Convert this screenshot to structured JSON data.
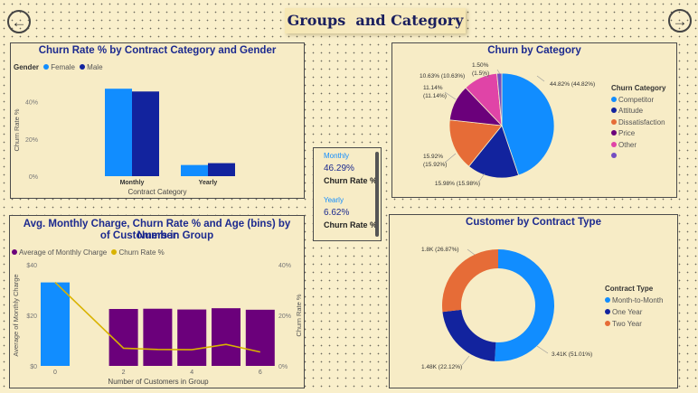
{
  "page": {
    "title": "Groups  and Category",
    "back_icon": "arrow-left-icon",
    "forward_icon": "arrow-right-icon"
  },
  "colors": {
    "blue": "#118dff",
    "navy": "#12239e",
    "orange": "#e66c37",
    "purple": "#6b007b",
    "pink": "#e044a7",
    "violet": "#744ec2",
    "yellow": "#d9b300",
    "title": "#1c2a8f"
  },
  "contract_gender_chart": {
    "title": "Churn Rate % by Contract Category and Gender",
    "legend_title": "Gender",
    "ylabel": "Churn Rate %",
    "xlabel": "Contract Category",
    "chart_data": {
      "type": "bar",
      "categories": [
        "Monthly",
        "Yearly"
      ],
      "series": [
        {
          "name": "Female",
          "values": [
            47,
            6
          ]
        },
        {
          "name": "Male",
          "values": [
            45.5,
            7
          ]
        }
      ],
      "y_ticks": [
        "0%",
        "20%",
        "40%"
      ],
      "ylim": [
        0,
        50
      ],
      "grid": false
    }
  },
  "churn_category_chart": {
    "title": "Churn by Category",
    "legend_title": "Churn Category",
    "chart_data": {
      "type": "pie",
      "labels": [
        "Competitor",
        "Attitude",
        "Dissatisfaction",
        "Price",
        "Other",
        ""
      ],
      "values": [
        44.82,
        15.98,
        15.92,
        11.14,
        10.63,
        1.5
      ],
      "data_labels": [
        "44.82% (44.82%)",
        "15.98% (15.98%)",
        "15.92% (15.92%)",
        "11.14% (11.14%)",
        "10.63% (10.63%)",
        "1.50% (1.5%)"
      ],
      "legend_placement": "right"
    }
  },
  "kpi_card": {
    "monthly_label": "Monthly",
    "monthly_value": "46.29%",
    "monthly_caption": "Churn Rate %",
    "yearly_label": "Yearly",
    "yearly_value": "6.62%",
    "yearly_caption": "Churn Rate %"
  },
  "group_chart": {
    "title_line1": "Avg. Monthly Charge, Churn Rate % and Age (bins) by Number",
    "title_line2": "of Customers in Group",
    "xlabel": "Number of Customers in Group",
    "ylabel_left": "Average of Monthly Charge",
    "ylabel_right": "Churn Rate %",
    "chart_data": {
      "type": "bar",
      "x": [
        0,
        1,
        2,
        3,
        4,
        5,
        6
      ],
      "x_ticks": [
        "0",
        "2",
        "4",
        "6"
      ],
      "series": [
        {
          "name": "Average of Monthly Charge",
          "values": [
            33,
            null,
            22.5,
            22.6,
            22.3,
            22.8,
            22.2
          ]
        },
        {
          "name": "Churn Rate %",
          "values": [
            33,
            null,
            7,
            6.5,
            6.4,
            8.5,
            5.5
          ]
        }
      ],
      "y_left_ticks": [
        "$0",
        "$20",
        "$40"
      ],
      "y_left_lim": [
        0,
        40
      ],
      "y_right_ticks": [
        "0%",
        "20%",
        "40%"
      ],
      "y_right_lim": [
        0,
        40
      ]
    }
  },
  "contract_type_chart": {
    "title": "Customer by Contract Type",
    "legend_title": "Contract Type",
    "chart_data": {
      "type": "pie",
      "donut": true,
      "labels": [
        "Month-to-Month",
        "One Year",
        "Two Year"
      ],
      "values": [
        51.01,
        22.12,
        26.87
      ],
      "data_labels": [
        "3.41K (51.01%)",
        "1.48K (22.12%)",
        "1.8K (26.87%)"
      ],
      "legend_placement": "right"
    }
  }
}
